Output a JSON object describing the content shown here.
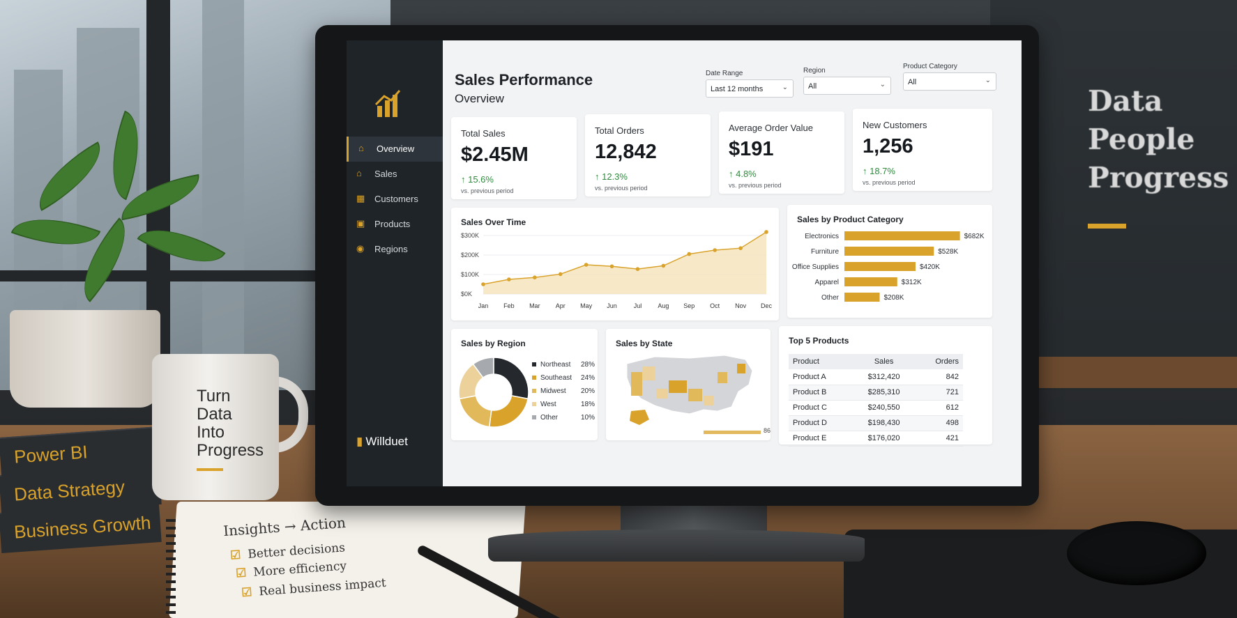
{
  "scene": {
    "wall_slogan": [
      "Data",
      "People",
      "Progress"
    ],
    "mug_text": [
      "Turn",
      "Data",
      "Into",
      "Progress"
    ],
    "books": [
      "Business Growth",
      "Data Strategy",
      "Power BI"
    ],
    "notebook": {
      "title": "Insights → Action",
      "items": [
        "Better decisions",
        "More efficiency",
        "Real business impact"
      ]
    }
  },
  "sidebar": {
    "brand": "Willduet",
    "items": [
      {
        "label": "Overview",
        "icon": "home-icon",
        "active": true
      },
      {
        "label": "Sales",
        "icon": "house-icon",
        "active": false
      },
      {
        "label": "Customers",
        "icon": "building-icon",
        "active": false
      },
      {
        "label": "Products",
        "icon": "box-icon",
        "active": false
      },
      {
        "label": "Regions",
        "icon": "map-pin-icon",
        "active": false
      }
    ]
  },
  "header": {
    "title": "Sales Performance",
    "subtitle": "Overview",
    "filters": [
      {
        "label": "Date Range",
        "value": "Last 12 months"
      },
      {
        "label": "Region",
        "value": "All"
      },
      {
        "label": "Product Category",
        "value": "All"
      }
    ]
  },
  "kpis": [
    {
      "label": "Total Sales",
      "value": "$2.45M",
      "delta": "↑ 15.6%",
      "sub": "vs. previous period"
    },
    {
      "label": "Total Orders",
      "value": "12,842",
      "delta": "↑ 12.3%",
      "sub": "vs. previous period"
    },
    {
      "label": "Average Order Value",
      "value": "$191",
      "delta": "↑ 4.8%",
      "sub": "vs. previous period"
    },
    {
      "label": "New Customers",
      "value": "1,256",
      "delta": "↑ 18.7%",
      "sub": "vs. previous period"
    }
  ],
  "colors": {
    "accent": "#d9a22a",
    "sidebar": "#1f2429",
    "positive": "#2f8a3e"
  },
  "chart_data": [
    {
      "type": "area",
      "title": "Sales Over Time",
      "categories": [
        "Jan",
        "Feb",
        "Mar",
        "Apr",
        "May",
        "Jun",
        "Jul",
        "Aug",
        "Sep",
        "Oct",
        "Nov",
        "Dec"
      ],
      "values": [
        50,
        75,
        85,
        102,
        150,
        142,
        128,
        145,
        205,
        225,
        235,
        318
      ],
      "y_ticks": [
        "$0K",
        "$100K",
        "$200K",
        "$300K"
      ],
      "ylim": [
        0,
        300
      ],
      "grid": true
    },
    {
      "type": "bar",
      "orientation": "horizontal",
      "title": "Sales by Product Category",
      "categories": [
        "Electronics",
        "Furniture",
        "Office Supplies",
        "Apparel",
        "Other"
      ],
      "values": [
        682,
        528,
        420,
        312,
        208
      ],
      "labels": [
        "$682K",
        "$528K",
        "$420K",
        "$312K",
        "$208K"
      ],
      "xlim": [
        0,
        700
      ]
    },
    {
      "type": "pie",
      "title": "Sales by Region",
      "donut": true,
      "categories": [
        "Northeast",
        "Southeast",
        "Midwest",
        "West",
        "Other"
      ],
      "values": [
        28,
        24,
        20,
        18,
        10
      ],
      "labels": [
        "28%",
        "24%",
        "20%",
        "18%",
        "10%"
      ],
      "colors": [
        "#25292d",
        "#d9a22a",
        "#e2b95a",
        "#ecd29a",
        "#a6aaae"
      ]
    }
  ],
  "state_map": {
    "title": "Sales by State",
    "scale_label": "86"
  },
  "top_products": {
    "title": "Top 5 Products",
    "columns": [
      "Product",
      "Sales",
      "Orders"
    ],
    "rows": [
      [
        "Product A",
        "$312,420",
        "842"
      ],
      [
        "Product B",
        "$285,310",
        "721"
      ],
      [
        "Product C",
        "$240,550",
        "612"
      ],
      [
        "Product D",
        "$198,430",
        "498"
      ],
      [
        "Product E",
        "$176,020",
        "421"
      ]
    ]
  }
}
